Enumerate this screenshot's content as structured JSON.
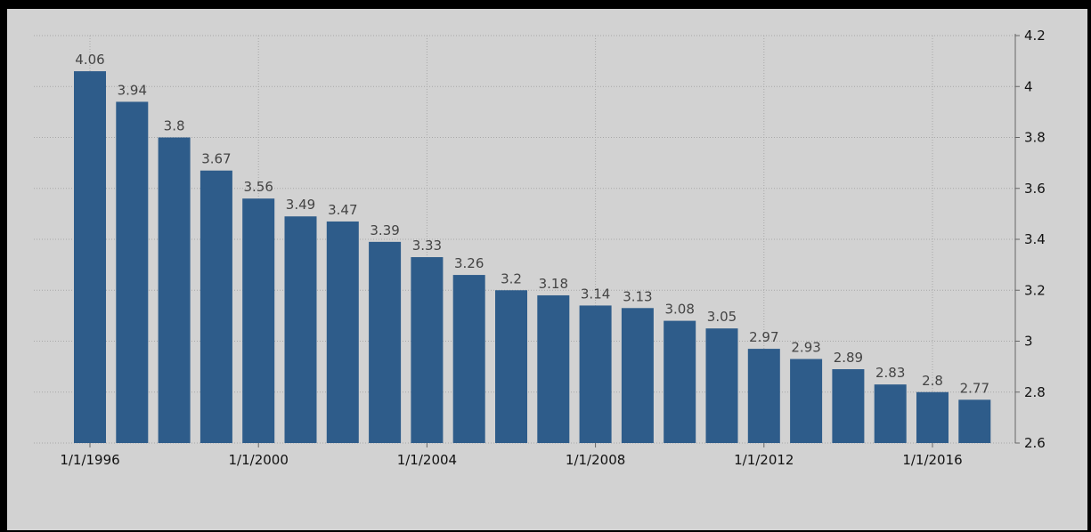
{
  "chart_data": {
    "type": "bar",
    "title": "",
    "xlabel": "",
    "ylabel": "",
    "x_tick_labels": [
      "1/1/1996",
      "1/1/2000",
      "1/1/2004",
      "1/1/2008",
      "1/1/2012",
      "1/1/2016"
    ],
    "categories": [
      "1996",
      "1997",
      "1998",
      "1999",
      "2000",
      "2001",
      "2002",
      "2003",
      "2004",
      "2005",
      "2006",
      "2007",
      "2008",
      "2009",
      "2010",
      "2011",
      "2012",
      "2013",
      "2014",
      "2015",
      "2016",
      "2017"
    ],
    "values": [
      4.06,
      3.94,
      3.8,
      3.67,
      3.56,
      3.49,
      3.47,
      3.39,
      3.33,
      3.26,
      3.2,
      3.18,
      3.14,
      3.13,
      3.08,
      3.05,
      2.97,
      2.93,
      2.89,
      2.83,
      2.8,
      2.77
    ],
    "ylim": [
      2.6,
      4.2
    ],
    "y_ticks": [
      2.6,
      2.8,
      3,
      3.2,
      3.4,
      3.6,
      3.8,
      4,
      4.2
    ],
    "y_axis_side": "right",
    "grid": true,
    "legend": "none",
    "bar_color": "#2e5c8a",
    "background_color": "#d2d2d2"
  }
}
